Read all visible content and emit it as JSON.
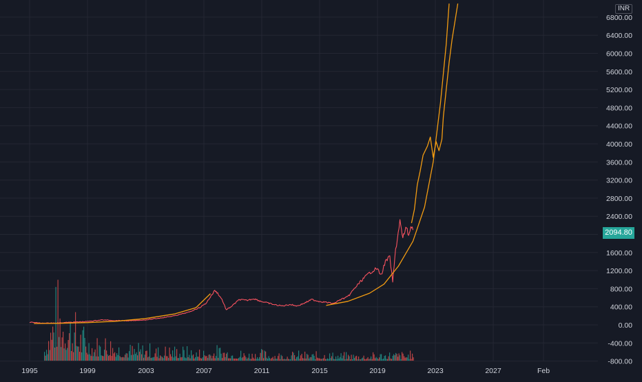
{
  "currency_label": "INR",
  "last_price_label": "2094.80",
  "colors": {
    "background": "#161a25",
    "grid": "#242733",
    "price_line": "#f7525f",
    "curve": "#f39c12",
    "volume_up": "#26a69a",
    "volume_down": "#ef5350",
    "last_price_badge": "#26a69a",
    "axis_text": "#d1d4dc"
  },
  "chart_data": {
    "type": "line",
    "xlabel": "",
    "ylabel": "",
    "x_ticks": [
      "1995",
      "1999",
      "2003",
      "2007",
      "2011",
      "2015",
      "2019",
      "2023",
      "2027",
      "Feb"
    ],
    "y_ticks": [
      "6800.00",
      "6400.00",
      "6000.00",
      "5600.00",
      "5200.00",
      "4800.00",
      "4400.00",
      "4000.00",
      "3600.00",
      "3200.00",
      "2800.00",
      "2400.00",
      "2000.00",
      "1600.00",
      "1200.00",
      "800.00",
      "400.00",
      "0.00",
      "-400.00",
      "-800.00"
    ],
    "ylim": [
      -800,
      7100
    ],
    "grid": true,
    "series": [
      {
        "type": "line",
        "points": [
          [
            1995.0,
            60
          ],
          [
            1996.0,
            35
          ],
          [
            1997.0,
            45
          ],
          [
            1998.0,
            60
          ],
          [
            1999.0,
            75
          ],
          [
            2000.0,
            110
          ],
          [
            2001.0,
            95
          ],
          [
            2002.0,
            90
          ],
          [
            2003.0,
            110
          ],
          [
            2004.0,
            150
          ],
          [
            2005.0,
            200
          ],
          [
            2006.0,
            280
          ],
          [
            2006.8,
            390
          ],
          [
            2007.2,
            480
          ],
          [
            2007.5,
            620
          ],
          [
            2007.8,
            760
          ],
          [
            2008.0,
            700
          ],
          [
            2008.3,
            560
          ],
          [
            2008.6,
            330
          ],
          [
            2009.0,
            420
          ],
          [
            2009.5,
            560
          ],
          [
            2010.0,
            540
          ],
          [
            2010.5,
            580
          ],
          [
            2011.0,
            520
          ],
          [
            2011.5,
            480
          ],
          [
            2012.0,
            440
          ],
          [
            2012.5,
            420
          ],
          [
            2013.0,
            450
          ],
          [
            2013.5,
            420
          ],
          [
            2014.0,
            480
          ],
          [
            2014.5,
            560
          ],
          [
            2015.0,
            520
          ],
          [
            2015.5,
            500
          ],
          [
            2016.0,
            470
          ],
          [
            2016.5,
            560
          ],
          [
            2017.0,
            620
          ],
          [
            2017.5,
            820
          ],
          [
            2018.0,
            1000
          ],
          [
            2018.5,
            1150
          ],
          [
            2019.0,
            1250
          ],
          [
            2019.3,
            1100
          ],
          [
            2019.6,
            1400
          ],
          [
            2019.9,
            1500
          ],
          [
            2020.1,
            950
          ],
          [
            2020.3,
            1650
          ],
          [
            2020.6,
            2300
          ],
          [
            2020.8,
            1900
          ],
          [
            2021.0,
            2150
          ],
          [
            2021.2,
            2000
          ],
          [
            2021.4,
            2200
          ],
          [
            2021.5,
            2094.8
          ]
        ]
      },
      {
        "type": "line",
        "points": [
          [
            1995.3,
            30
          ],
          [
            1997,
            35
          ],
          [
            1999,
            50
          ],
          [
            2001,
            80
          ],
          [
            2003,
            140
          ],
          [
            2005,
            240
          ],
          [
            2006.5,
            380
          ],
          [
            2007.5,
            690
          ]
        ]
      },
      {
        "type": "line",
        "points": [
          [
            2015.5,
            430
          ],
          [
            2017,
            520
          ],
          [
            2018.5,
            700
          ],
          [
            2019.5,
            900
          ],
          [
            2020.5,
            1300
          ],
          [
            2021.5,
            1850
          ],
          [
            2022.3,
            2600
          ],
          [
            2022.9,
            3600
          ],
          [
            2023.4,
            4900
          ],
          [
            2023.8,
            6200
          ],
          [
            2024.0,
            7100
          ]
        ]
      },
      {
        "type": "line",
        "points": [
          [
            2021.4,
            2250
          ],
          [
            2021.6,
            2550
          ],
          [
            2021.8,
            3100
          ],
          [
            2022.0,
            3400
          ],
          [
            2022.2,
            3750
          ],
          [
            2022.5,
            3950
          ],
          [
            2022.7,
            4150
          ],
          [
            2022.9,
            3700
          ],
          [
            2023.1,
            4050
          ],
          [
            2023.3,
            3850
          ],
          [
            2023.5,
            4100
          ],
          [
            2023.6,
            4600
          ],
          [
            2023.8,
            5200
          ],
          [
            2024.0,
            5800
          ],
          [
            2024.2,
            6300
          ],
          [
            2024.4,
            6700
          ],
          [
            2024.6,
            7100
          ]
        ]
      }
    ],
    "volume": {
      "values": [
        0.3,
        1.0,
        0.7,
        0.45,
        0.3,
        0.35,
        0.25,
        0.2,
        0.22,
        0.18,
        0.2,
        0.18,
        0.15,
        0.17,
        0.2,
        0.15,
        0.12,
        0.14,
        0.12,
        0.1,
        0.12,
        0.1,
        0.12,
        0.1,
        0.1,
        0.09,
        0.1,
        0.12,
        0.11,
        0.12
      ],
      "x_start": 1996.0,
      "x_end": 2021.5
    }
  }
}
